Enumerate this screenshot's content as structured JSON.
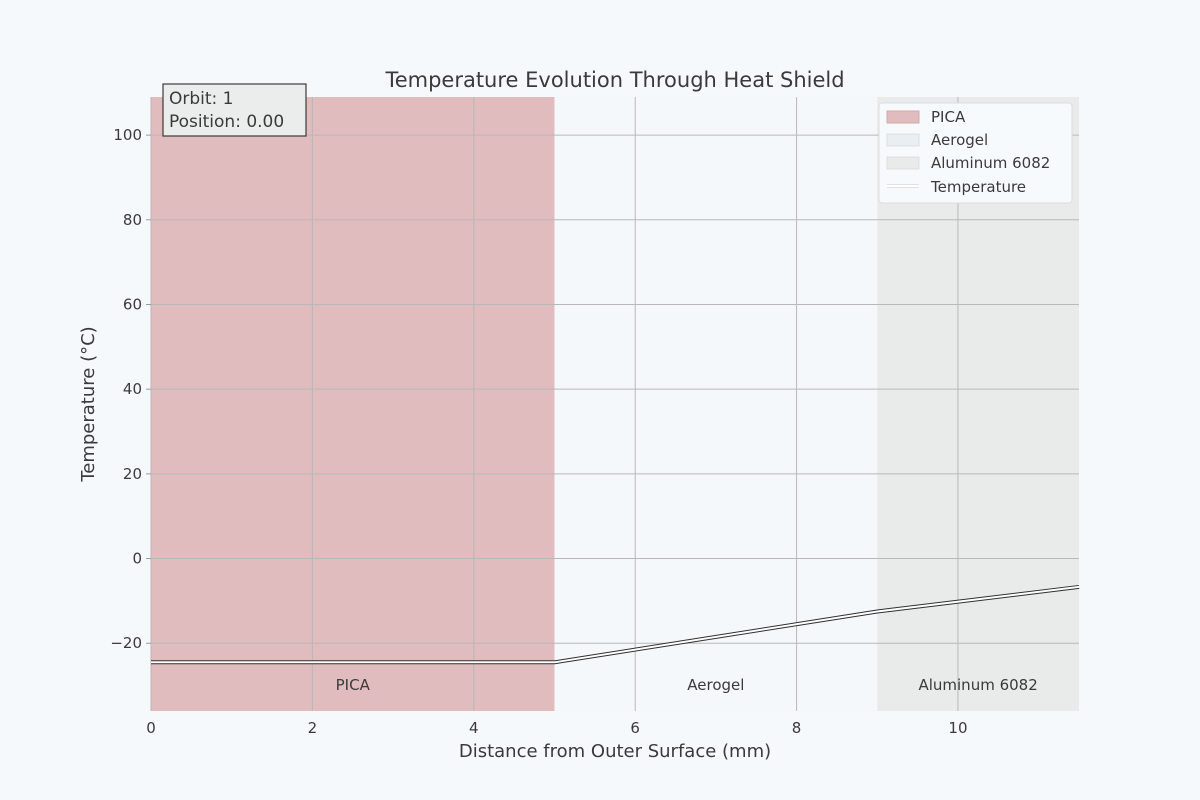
{
  "chart_data": {
    "type": "line",
    "title": "Temperature Evolution Through Heat Shield",
    "xlabel": "Distance from Outer Surface (mm)",
    "ylabel": "Temperature (°C)",
    "xlim": [
      0,
      11.5
    ],
    "ylim": [
      -36,
      109
    ],
    "xticks": [
      0,
      2,
      4,
      6,
      8,
      10
    ],
    "yticks": [
      -20,
      0,
      20,
      40,
      60,
      80,
      100
    ],
    "grid": true,
    "legend_position": "top-right",
    "layers": [
      {
        "name": "PICA",
        "start": 0,
        "end": 5,
        "color": "#e1bcbe",
        "label": "PICA"
      },
      {
        "name": "Aerogel",
        "start": 5,
        "end": 9,
        "color": "#f4f8fb",
        "label": "Aerogel"
      },
      {
        "name": "Aluminum 6082",
        "start": 9,
        "end": 11.5,
        "color": "#e9ebeb",
        "label": "Aluminum 6082"
      }
    ],
    "series": [
      {
        "name": "Temperature",
        "color": "#ffffff",
        "x": [
          0,
          5,
          9,
          11.5
        ],
        "y": [
          -24.5,
          -24.5,
          -12.5,
          -6.7
        ]
      }
    ],
    "annotation": {
      "lines": [
        "Orbit: 1",
        "Position: 0.00"
      ]
    }
  }
}
